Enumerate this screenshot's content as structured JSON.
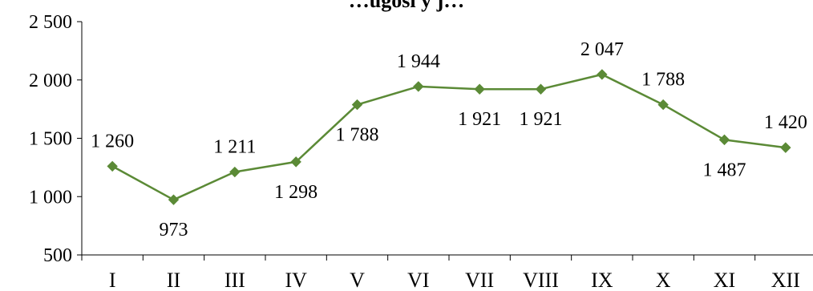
{
  "chart_data": {
    "type": "line",
    "title": "…ugosi  y j…",
    "categories": [
      "I",
      "II",
      "III",
      "IV",
      "V",
      "VI",
      "VII",
      "VIII",
      "IX",
      "X",
      "XI",
      "XII"
    ],
    "series": [
      {
        "values": [
          1260,
          973,
          1211,
          1298,
          1788,
          1944,
          1921,
          1921,
          2047,
          1788,
          1487,
          1420
        ],
        "data_labels": [
          "1 260",
          "973",
          "1 211",
          "1 298",
          "1 788",
          "1 944",
          "1 921",
          "1 921",
          "2 047",
          "1 788",
          "1 487",
          "1 420"
        ],
        "color": "#5b8a36",
        "marker": "diamond"
      }
    ],
    "ylim": [
      500,
      2500
    ],
    "y_ticks": [
      500,
      1000,
      1500,
      2000,
      2500
    ],
    "y_tick_labels": [
      "500",
      "1 000",
      "1 500",
      "2 000",
      "2 500"
    ],
    "grid": false,
    "legend": "none"
  }
}
